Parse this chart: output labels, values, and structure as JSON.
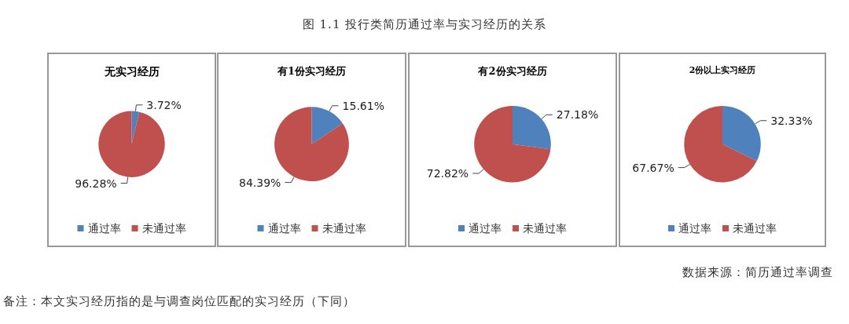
{
  "chart_data": [
    {
      "type": "pie",
      "title": "无实习经历",
      "categories": [
        "通过率",
        "未通过率"
      ],
      "values": [
        3.72,
        96.28
      ],
      "value_labels": [
        "3.72%",
        "96.28%"
      ],
      "colors": [
        "#4f81bd",
        "#c0504d"
      ],
      "legend": "bottom",
      "annotations": [
        "图 1.1  投行类简历通过率与实习经历的关系"
      ]
    },
    {
      "type": "pie",
      "title": "有1份实习经历",
      "categories": [
        "通过率",
        "未通过率"
      ],
      "values": [
        15.61,
        84.39
      ],
      "value_labels": [
        "15.61%",
        "84.39%"
      ],
      "colors": [
        "#4f81bd",
        "#c0504d"
      ],
      "legend": "bottom"
    },
    {
      "type": "pie",
      "title": "有2份实习经历",
      "categories": [
        "通过率",
        "未通过率"
      ],
      "values": [
        27.18,
        72.82
      ],
      "value_labels": [
        "27.18%",
        "72.82%"
      ],
      "colors": [
        "#4f81bd",
        "#c0504d"
      ],
      "legend": "bottom"
    },
    {
      "type": "pie",
      "title": "2份以上实习经历",
      "categories": [
        "通过率",
        "未通过率"
      ],
      "values": [
        32.33,
        67.67
      ],
      "value_labels": [
        "32.33%",
        "67.67%"
      ],
      "colors": [
        "#4f81bd",
        "#c0504d"
      ],
      "legend": "bottom",
      "annotations": [
        "数据来源：简历通过率调查",
        "备注：本文实习经历指的是与调查岗位匹配的实习经历（下同）"
      ]
    }
  ]
}
